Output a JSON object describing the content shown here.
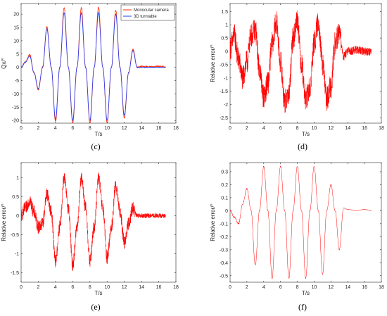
{
  "chart_data": [
    {
      "id": "c",
      "type": "line",
      "caption": "(c)",
      "xlabel": "T/s",
      "ylabel": "Qx/°",
      "xlim": [
        0,
        18
      ],
      "ylim": [
        -21,
        24
      ],
      "xticks": [
        0,
        2,
        4,
        6,
        8,
        10,
        12,
        14,
        16,
        18
      ],
      "yticks": [
        -20,
        -15,
        -10,
        -5,
        0,
        5,
        10,
        15,
        20
      ],
      "legend": {
        "placement": "top-right",
        "entries": [
          "Monocular camera",
          "3D turntable"
        ]
      },
      "series": [
        {
          "name": "Monocular camera",
          "color": "#ff2a00",
          "x": [
            0,
            0.5,
            1,
            1.5,
            2,
            2.5,
            3,
            3.5,
            4,
            4.5,
            5,
            5.5,
            6,
            6.5,
            7,
            7.5,
            8,
            8.5,
            9,
            9.5,
            10,
            10.5,
            11,
            11.5,
            12,
            12.5,
            13,
            13.5,
            14,
            15,
            16,
            16.8
          ],
          "y": [
            0,
            2,
            4.8,
            -2,
            -8.5,
            0,
            15.2,
            0,
            -20.5,
            0,
            22.5,
            0,
            -21,
            0,
            22.5,
            0,
            -21,
            0,
            22.5,
            0,
            -21,
            0,
            21.5,
            0,
            -19,
            -2,
            6.8,
            0,
            0.3,
            0.2,
            0.3,
            0.2
          ]
        },
        {
          "name": "3D turntable",
          "color": "#1f3fff",
          "x": [
            0,
            0.5,
            1,
            1.5,
            2,
            2.5,
            3,
            3.5,
            4,
            4.5,
            5,
            5.5,
            6,
            6.5,
            7,
            7.5,
            8,
            8.5,
            9,
            9.5,
            10,
            10.5,
            11,
            11.5,
            12,
            12.5,
            13,
            13.5,
            14,
            15,
            16,
            16.8
          ],
          "y": [
            0,
            2,
            4.2,
            -2,
            -8,
            0,
            14.5,
            0,
            -19.5,
            0,
            20.5,
            0,
            -20,
            0,
            20.5,
            0,
            -20,
            0,
            20.5,
            0,
            -20,
            0,
            20,
            0,
            -18,
            -2,
            6.2,
            0,
            0,
            0,
            0,
            0
          ]
        }
      ]
    },
    {
      "id": "d",
      "type": "line",
      "caption": "(d)",
      "xlabel": "T/s",
      "ylabel": "Relative error/°",
      "xlim": [
        0,
        18
      ],
      "ylim": [
        -2.7,
        1.8
      ],
      "xticks": [
        0,
        2,
        4,
        6,
        8,
        10,
        12,
        14,
        16,
        18
      ],
      "yticks": [
        -2.5,
        -2,
        -1.5,
        -1,
        -0.5,
        0,
        0.5,
        1,
        1.5
      ],
      "series": [
        {
          "name": "",
          "color": "#ff0000",
          "x": [
            0,
            0.5,
            1,
            1.5,
            2,
            2.5,
            3,
            3.5,
            4,
            4.5,
            5,
            5.5,
            6,
            6.5,
            7,
            7.5,
            8,
            8.5,
            9,
            9.5,
            10,
            10.5,
            11,
            11.5,
            12,
            12.5,
            13,
            13.5,
            14,
            15,
            16,
            16.8
          ],
          "y": [
            0.1,
            0.6,
            -0.3,
            -1.0,
            -0.4,
            0.6,
            0.8,
            -0.7,
            -1.7,
            -1.2,
            0.3,
            1.1,
            -0.4,
            -1.9,
            -1.6,
            0.5,
            1.2,
            -0.5,
            -1.8,
            -1.4,
            0.3,
            1.1,
            -0.5,
            -1.8,
            -1.3,
            0.3,
            0.7,
            -0.2,
            0.0,
            0.05,
            0.0,
            0.0
          ],
          "noise_amplitude": 0.9
        }
      ]
    },
    {
      "id": "e",
      "type": "line",
      "caption": "(e)",
      "xlabel": "T/s",
      "ylabel": "Relative error/°",
      "xlim": [
        0,
        18
      ],
      "ylim": [
        -1.75,
        1.4
      ],
      "xticks": [
        0,
        2,
        4,
        6,
        8,
        10,
        12,
        14,
        16,
        18
      ],
      "yticks": [
        -1.5,
        -1,
        -0.5,
        0,
        0.5,
        1
      ],
      "series": [
        {
          "name": "",
          "color": "#ff0000",
          "x": [
            0,
            0.5,
            1,
            1.5,
            2,
            2.5,
            3,
            3.5,
            4,
            4.5,
            5,
            5.5,
            6,
            6.5,
            7,
            7.5,
            8,
            8.5,
            9,
            9.5,
            10,
            10.5,
            11,
            11.5,
            12,
            12.5,
            13,
            13.5,
            14,
            15,
            16,
            16.8
          ],
          "y": [
            0.0,
            0.2,
            0.4,
            0.1,
            -0.3,
            -0.2,
            0.6,
            0.1,
            -1.2,
            -0.3,
            1.0,
            0.2,
            -1.3,
            -0.3,
            1.0,
            0.2,
            -1.2,
            -0.3,
            1.0,
            0.2,
            -1.1,
            -0.3,
            0.8,
            0.1,
            -0.7,
            -0.2,
            0.2,
            0.0,
            0.0,
            0.0,
            0.0,
            0.0
          ],
          "noise_amplitude": 0.35
        }
      ]
    },
    {
      "id": "f",
      "type": "line",
      "caption": "(f)",
      "xlabel": "T/s",
      "ylabel": "Relative error/°",
      "xlim": [
        0,
        18
      ],
      "ylim": [
        -0.55,
        0.37
      ],
      "xticks": [
        0,
        2,
        4,
        6,
        8,
        10,
        12,
        14,
        16,
        18
      ],
      "yticks": [
        -0.5,
        -0.4,
        -0.3,
        -0.2,
        -0.1,
        0,
        0.1,
        0.2,
        0.3
      ],
      "series": [
        {
          "name": "",
          "color": "#ff0000",
          "x": [
            0,
            0.5,
            1,
            1.5,
            2,
            2.5,
            3,
            3.5,
            4,
            4.5,
            5,
            5.5,
            6,
            6.5,
            7,
            7.5,
            8,
            8.5,
            9,
            9.5,
            10,
            10.5,
            11,
            11.5,
            12,
            12.5,
            13,
            13.5,
            14,
            15,
            16,
            16.8
          ],
          "y": [
            0.0,
            -0.05,
            -0.1,
            0.05,
            0.17,
            0.0,
            -0.42,
            0.0,
            0.34,
            0.0,
            -0.52,
            0.0,
            0.34,
            0.0,
            -0.52,
            0.0,
            0.34,
            0.0,
            -0.52,
            0.0,
            0.34,
            0.0,
            -0.49,
            0.0,
            0.2,
            0.0,
            -0.3,
            0.02,
            0.01,
            0.0,
            0.01,
            0.0
          ],
          "noise_amplitude": 0.01
        }
      ]
    }
  ]
}
